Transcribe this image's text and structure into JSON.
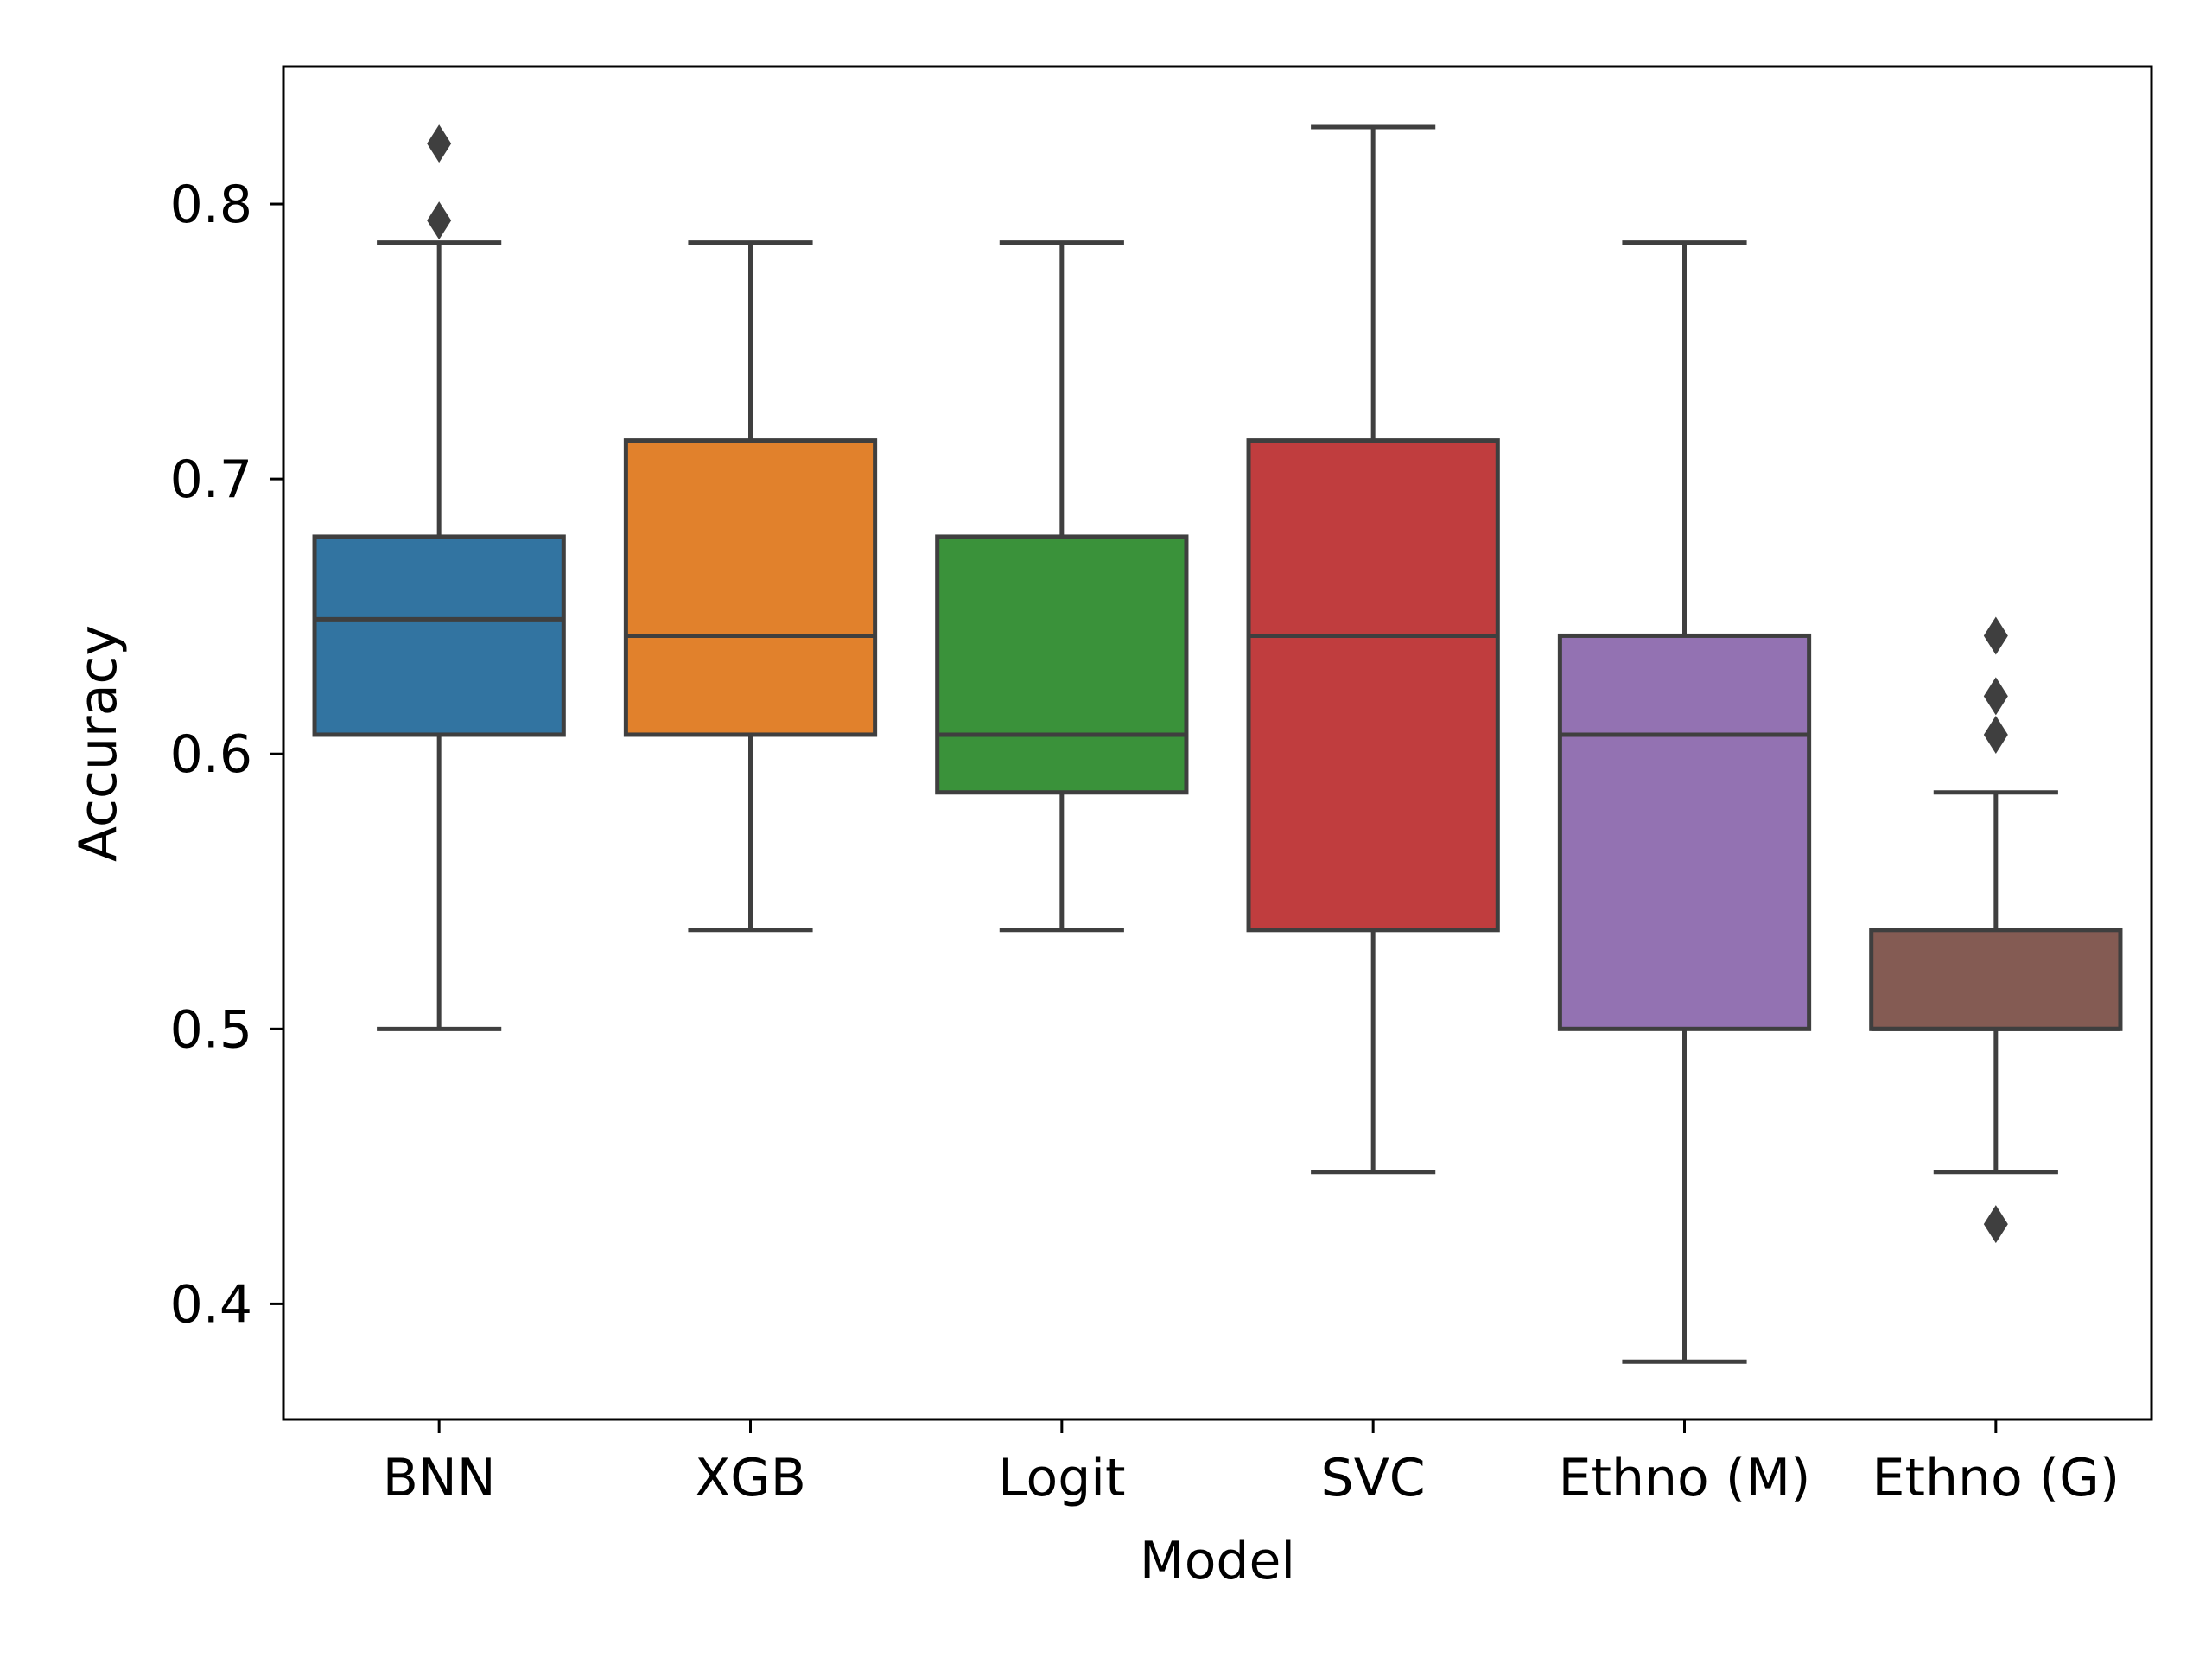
{
  "chart_data": {
    "type": "box",
    "xlabel": "Model",
    "ylabel": "Accuracy",
    "ylim": [
      0.358,
      0.85
    ],
    "yticks": [
      0.4,
      0.5,
      0.6,
      0.7,
      0.8
    ],
    "ytick_labels": [
      "0.4",
      "0.5",
      "0.6",
      "0.7",
      "0.8"
    ],
    "grid": false,
    "legend": "none",
    "categories": [
      "BNN",
      "XGB",
      "Logit",
      "SVC",
      "Ethno (M)",
      "Ethno (G)"
    ],
    "boxes": [
      {
        "category": "BNN",
        "color": "#3274a1",
        "whisker_low": 0.5,
        "q1": 0.607,
        "median": 0.649,
        "q3": 0.679,
        "whisker_high": 0.786,
        "outliers": [
          0.794,
          0.822
        ]
      },
      {
        "category": "XGB",
        "color": "#e1812c",
        "whisker_low": 0.536,
        "q1": 0.607,
        "median": 0.643,
        "q3": 0.714,
        "whisker_high": 0.786,
        "outliers": []
      },
      {
        "category": "Logit",
        "color": "#3a923a",
        "whisker_low": 0.536,
        "q1": 0.586,
        "median": 0.607,
        "q3": 0.679,
        "whisker_high": 0.786,
        "outliers": []
      },
      {
        "category": "SVC",
        "color": "#c03d3e",
        "whisker_low": 0.448,
        "q1": 0.536,
        "median": 0.643,
        "q3": 0.714,
        "whisker_high": 0.828,
        "outliers": []
      },
      {
        "category": "Ethno (M)",
        "color": "#9372b2",
        "whisker_low": 0.379,
        "q1": 0.5,
        "median": 0.607,
        "q3": 0.643,
        "whisker_high": 0.786,
        "outliers": []
      },
      {
        "category": "Ethno (G)",
        "color": "#845b53",
        "whisker_low": 0.448,
        "q1": 0.5,
        "median": 0.5,
        "q3": 0.536,
        "whisker_high": 0.586,
        "outliers": [
          0.429,
          0.607,
          0.621,
          0.643
        ]
      }
    ],
    "line_color": "#3f3f3f"
  }
}
